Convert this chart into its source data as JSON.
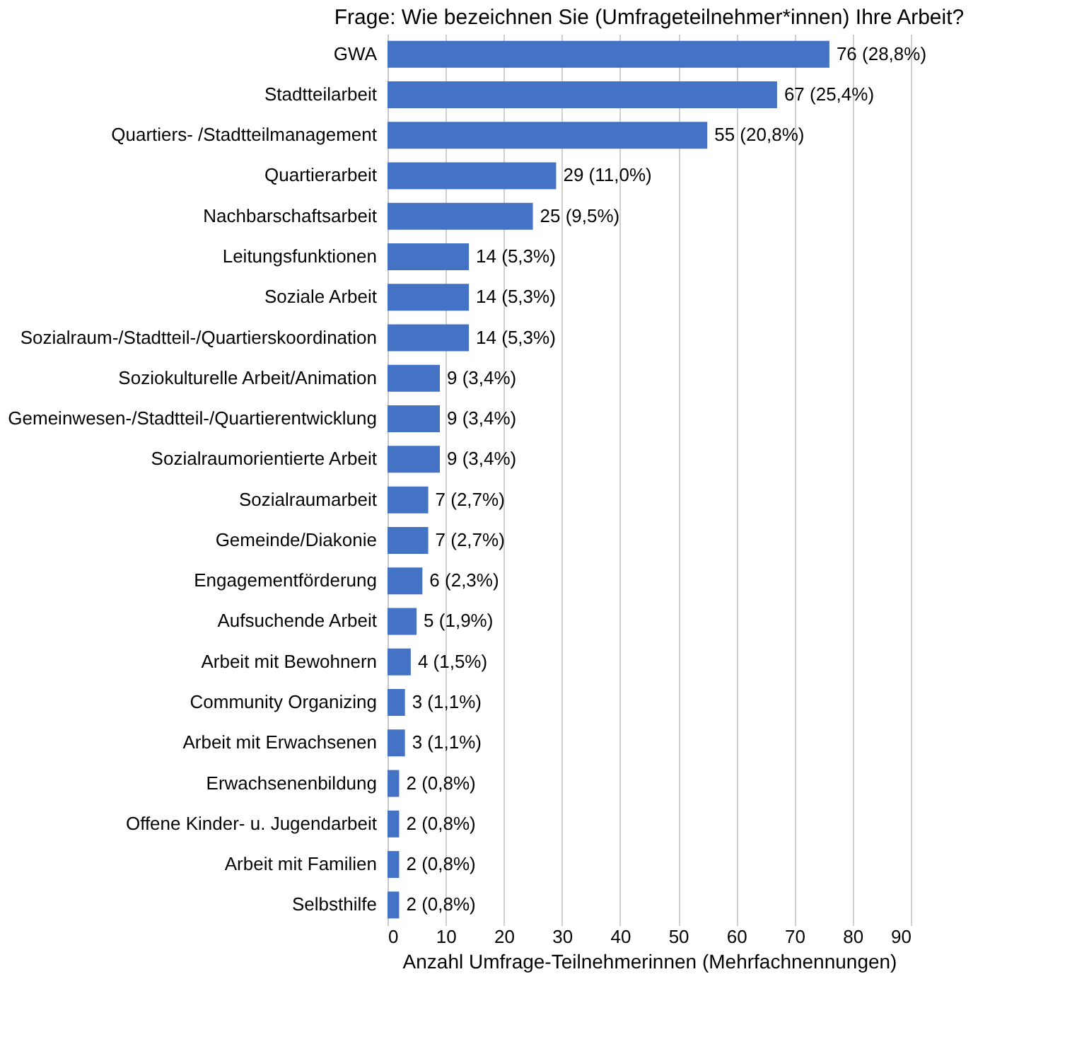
{
  "chart_data": {
    "type": "bar",
    "orientation": "horizontal",
    "title": "Frage: Wie bezeichnen Sie (Umfrageteilnehmer*innen) Ihre Arbeit?",
    "xlabel": "Anzahl Umfrage-Teilnehmerinnen (Mehrfachnennungen)",
    "categories": [
      "GWA",
      "Stadtteilarbeit",
      "Quartiers- /Stadtteilmanagement",
      "Quartierarbeit",
      "Nachbarschaftsarbeit",
      "Leitungsfunktionen",
      "Soziale Arbeit",
      "Sozialraum-/Stadtteil-/Quartierskoordination",
      "Soziokulturelle Arbeit/Animation",
      "Gemeinwesen-/Stadtteil-/Quartierentwicklung",
      "Sozialraumorientierte Arbeit",
      "Sozialraumarbeit",
      "Gemeinde/Diakonie",
      "Engagementförderung",
      "Aufsuchende Arbeit",
      "Arbeit mit Bewohnern",
      "Community Organizing",
      "Arbeit mit Erwachsenen",
      "Erwachsenenbildung",
      "Offene Kinder- u. Jugendarbeit",
      "Arbeit mit Familien",
      "Selbsthilfe"
    ],
    "values": [
      76,
      67,
      55,
      29,
      25,
      14,
      14,
      14,
      9,
      9,
      9,
      7,
      7,
      6,
      5,
      4,
      3,
      3,
      2,
      2,
      2,
      2
    ],
    "value_labels": [
      "76 (28,8%)",
      "67 (25,4%)",
      "55 (20,8%)",
      "29 (11,0%)",
      "25 (9,5%)",
      "14 (5,3%)",
      "14 (5,3%)",
      "14 (5,3%)",
      "9 (3,4%)",
      "9 (3,4%)",
      "9 (3,4%)",
      "7 (2,7%)",
      "7 (2,7%)",
      "6 (2,3%)",
      "5 (1,9%)",
      "4 (1,5%)",
      "3 (1,1%)",
      "3 (1,1%)",
      "2 (0,8%)",
      "2 (0,8%)",
      "2 (0,8%)",
      "2 (0,8%)"
    ],
    "color": "#4472c4",
    "xlim": [
      0,
      90
    ],
    "xticks": [
      0,
      10,
      20,
      30,
      40,
      50,
      60,
      70,
      80,
      90
    ],
    "grid": "x"
  }
}
